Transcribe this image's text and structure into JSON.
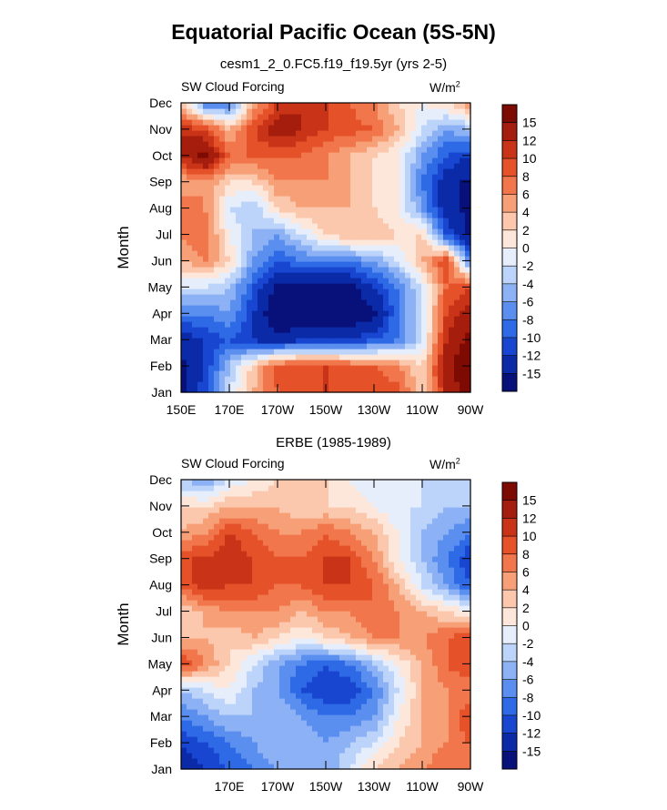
{
  "figure": {
    "title": "Equatorial Pacific Ocean (5S-5N)",
    "colors": [
      "#08107a",
      "#0b2aa8",
      "#1846d0",
      "#2f6ae6",
      "#5a8ff0",
      "#8cb1f5",
      "#bcd3fa",
      "#e6eefc",
      "#fde7da",
      "#fbc8ad",
      "#f7a077",
      "#f2764b",
      "#e5522a",
      "#c93418",
      "#a51d0c",
      "#7d0b03"
    ],
    "colorbar_labels": [
      "-15",
      "-12",
      "-10",
      "-8",
      "-6",
      "-4",
      "-2",
      "0",
      "2",
      "4",
      "6",
      "8",
      "10",
      "12",
      "15"
    ]
  },
  "chart_data": [
    {
      "type": "heatmap",
      "title": "cesm1_2_0.FC5.f19_f19.5yr (yrs 2-5)",
      "left_label": "SW Cloud Forcing",
      "units": "W/m",
      "units_sup": "2",
      "ylabel": "Month",
      "x_tick_labels": [
        "150E",
        "170E",
        "170W",
        "150W",
        "130W",
        "110W",
        "90W"
      ],
      "y_tick_labels": [
        "Jan",
        "Feb",
        "Mar",
        "Apr",
        "May",
        "Jun",
        "Jul",
        "Aug",
        "Sep",
        "Oct",
        "Nov",
        "Dec"
      ],
      "x_columns": [
        150,
        160,
        170,
        180,
        190,
        200,
        210,
        220,
        230,
        240,
        250,
        260,
        270
      ],
      "grid": false,
      "values": [
        [
          -16,
          -10,
          -2,
          4,
          8,
          9,
          10,
          10,
          10,
          9,
          2,
          12,
          18
        ],
        [
          -16,
          -12,
          -4,
          3,
          9,
          10,
          10,
          9,
          8,
          6,
          2,
          14,
          18
        ],
        [
          -14,
          -12,
          -10,
          -12,
          -14,
          -12,
          -12,
          -12,
          -10,
          -8,
          -2,
          12,
          16
        ],
        [
          -8,
          -8,
          -6,
          -12,
          -18,
          -18,
          -18,
          -18,
          -16,
          -8,
          -2,
          10,
          14
        ],
        [
          -2,
          -2,
          -4,
          -10,
          -16,
          -16,
          -16,
          -16,
          -12,
          -8,
          -2,
          8,
          10
        ],
        [
          4,
          6,
          2,
          -6,
          -10,
          -8,
          -8,
          -8,
          -6,
          -2,
          4,
          10,
          -8
        ],
        [
          6,
          8,
          0,
          -4,
          -6,
          -2,
          2,
          4,
          4,
          2,
          2,
          -10,
          -16
        ],
        [
          8,
          6,
          -2,
          -4,
          2,
          4,
          4,
          4,
          2,
          0,
          -6,
          -14,
          -16
        ],
        [
          4,
          6,
          2,
          2,
          6,
          6,
          6,
          4,
          2,
          0,
          -8,
          -14,
          -16
        ],
        [
          12,
          16,
          8,
          8,
          8,
          8,
          6,
          4,
          2,
          0,
          -6,
          -10,
          -12
        ],
        [
          12,
          10,
          4,
          10,
          14,
          12,
          10,
          9,
          8,
          4,
          -2,
          -6,
          -4
        ],
        [
          4,
          -8,
          -8,
          4,
          10,
          12,
          10,
          8,
          6,
          2,
          0,
          2,
          6
        ]
      ]
    },
    {
      "type": "heatmap",
      "title": "ERBE (1985-1989)",
      "left_label": "SW Cloud Forcing",
      "units": "W/m",
      "units_sup": "2",
      "ylabel": "Month",
      "x_tick_labels": [
        "170E",
        "170W",
        "150W",
        "130W",
        "110W",
        "90W"
      ],
      "y_tick_labels": [
        "Jan",
        "Feb",
        "Mar",
        "Apr",
        "May",
        "Jun",
        "Jul",
        "Aug",
        "Sep",
        "Oct",
        "Nov",
        "Dec"
      ],
      "x_columns": [
        150,
        160,
        170,
        180,
        190,
        200,
        210,
        220,
        230,
        240,
        250,
        260,
        270
      ],
      "grid": false,
      "values": [
        [
          -14,
          -12,
          -10,
          -8,
          -6,
          -4,
          -6,
          -2,
          2,
          4,
          6,
          8,
          6
        ],
        [
          -12,
          -10,
          -8,
          -6,
          -4,
          -4,
          -6,
          -4,
          -2,
          2,
          4,
          6,
          8
        ],
        [
          -8,
          -6,
          -4,
          -4,
          -4,
          -6,
          -8,
          -8,
          -6,
          0,
          4,
          6,
          10
        ],
        [
          -4,
          -2,
          0,
          -4,
          -6,
          -10,
          -12,
          -12,
          -8,
          -2,
          4,
          6,
          6
        ],
        [
          10,
          6,
          2,
          -2,
          -6,
          -8,
          -10,
          -8,
          -4,
          0,
          4,
          8,
          10
        ],
        [
          4,
          4,
          2,
          4,
          2,
          0,
          2,
          4,
          6,
          6,
          6,
          8,
          10
        ],
        [
          2,
          4,
          6,
          6,
          6,
          4,
          6,
          6,
          8,
          6,
          4,
          2,
          0
        ],
        [
          8,
          12,
          10,
          10,
          8,
          8,
          10,
          10,
          8,
          4,
          -2,
          -6,
          -10
        ],
        [
          10,
          10,
          12,
          10,
          8,
          8,
          10,
          10,
          6,
          0,
          -4,
          -8,
          -12
        ],
        [
          4,
          6,
          10,
          8,
          6,
          6,
          8,
          6,
          4,
          0,
          -4,
          -6,
          -8
        ],
        [
          2,
          2,
          4,
          4,
          4,
          2,
          2,
          2,
          0,
          -2,
          -2,
          -4,
          -4
        ],
        [
          -4,
          -6,
          -2,
          0,
          2,
          2,
          2,
          0,
          -2,
          -2,
          -2,
          -4,
          -4
        ]
      ]
    }
  ]
}
